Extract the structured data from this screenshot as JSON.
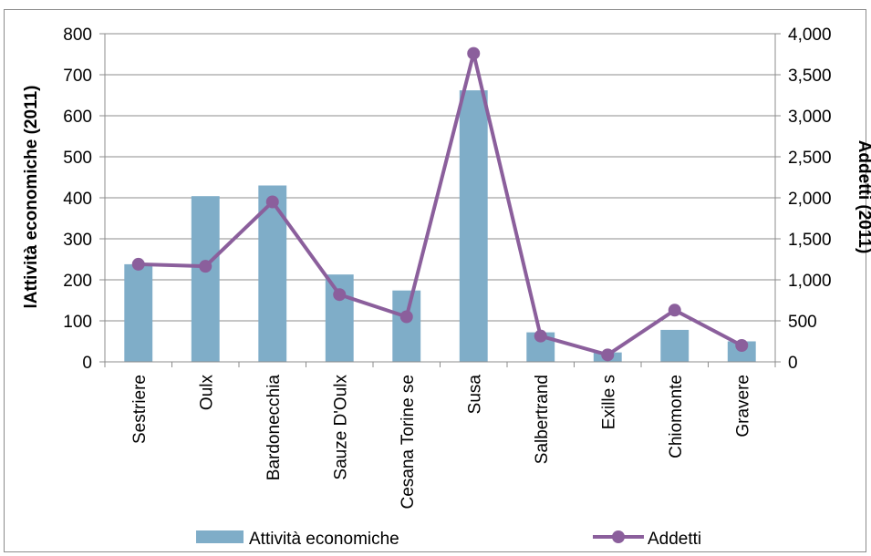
{
  "chart_data": {
    "type": "bar",
    "categories": [
      "Sestriere",
      "Oulx",
      "Bardonecchia",
      "Sauze D'Oulx",
      "Cesana Torinese",
      "Susa",
      "Salbertrand",
      "Exilles",
      "Chiomonte",
      "Gravere"
    ],
    "tick_labels": [
      "Sestriere",
      "Oulx",
      "Bardonecchia",
      "Sauze D'Oulx",
      "Cesana Torine se",
      "Susa",
      "Salbertrand",
      "Exille s",
      "Chiomonte",
      "Gravere"
    ],
    "series": [
      {
        "name": "Attività economiche",
        "type": "bar",
        "axis": "left",
        "color": "#7fadc8",
        "values": [
          238,
          404,
          430,
          213,
          174,
          662,
          72,
          23,
          78,
          50
        ]
      },
      {
        "name": "Addetti",
        "type": "line",
        "axis": "right",
        "color": "#8b5f9c",
        "values": [
          1190,
          1165,
          1950,
          820,
          550,
          3760,
          315,
          85,
          630,
          200
        ]
      }
    ],
    "ylabel": "lAttività economiche (2011)",
    "y2label": "Addetti (2011)",
    "ylim": [
      0,
      800
    ],
    "y2lim": [
      0,
      4000
    ],
    "yticks": [
      "0",
      "100",
      "200",
      "300",
      "400",
      "500",
      "600",
      "700",
      "800"
    ],
    "y2ticks": [
      "0",
      "500",
      "1,000",
      "1,500",
      "2,000",
      "2,500",
      "3,000",
      "3,500",
      "4,000"
    ],
    "grid": true,
    "legend": {
      "position": "bottom",
      "items": [
        "Attività economiche",
        "Addetti"
      ]
    }
  }
}
